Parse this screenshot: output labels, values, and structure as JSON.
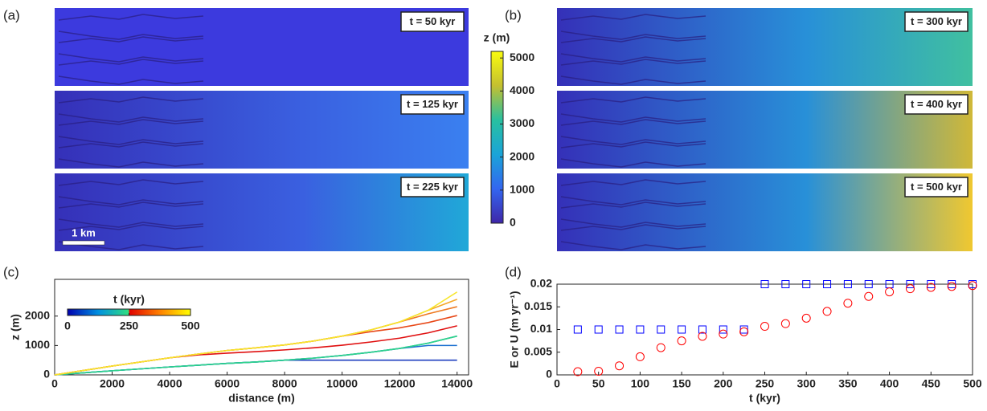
{
  "panel_labels": [
    "(a)",
    "(b)",
    "(c)",
    "(d)"
  ],
  "maps": {
    "a": {
      "panels": [
        {
          "label": "t = 50 kyr"
        },
        {
          "label": "t = 125 kyr"
        },
        {
          "label": "t = 225 kyr"
        }
      ],
      "scale_bar": "1 km"
    },
    "b": {
      "panels": [
        {
          "label": "t = 300 kyr"
        },
        {
          "label": "t = 400 kyr"
        },
        {
          "label": "t = 500 kyr"
        }
      ]
    },
    "colorbar": {
      "label": "z (m)",
      "lim": [
        0,
        5200
      ],
      "ticks": [
        0,
        1000,
        2000,
        3000,
        4000,
        5000
      ]
    }
  },
  "chart_data": [
    {
      "type": "line",
      "xlabel": "distance (m)",
      "ylabel": "z (m)",
      "x": [
        0,
        1000,
        2000,
        3000,
        4000,
        5000,
        6000,
        7000,
        8000,
        9000,
        10000,
        11000,
        12000,
        13000,
        14000
      ],
      "xlim": [
        0,
        14400
      ],
      "ylim": [
        0,
        3250
      ],
      "xticks": [
        0,
        2000,
        4000,
        6000,
        8000,
        10000,
        12000,
        14000
      ],
      "yticks": [
        0,
        1000,
        2000
      ],
      "colorbar": {
        "label": "t (kyr)",
        "lim": [
          0,
          500
        ],
        "ticks": [
          0,
          250,
          500
        ]
      },
      "series": [
        {
          "color": "#1f3fbf",
          "values": [
            0,
            70,
            140,
            205,
            270,
            330,
            390,
            440,
            500,
            500,
            500,
            500,
            500,
            500,
            500
          ]
        },
        {
          "color": "#1a6fd0",
          "values": [
            0,
            70,
            140,
            205,
            270,
            330,
            390,
            440,
            500,
            570,
            660,
            770,
            900,
            1000,
            1000
          ]
        },
        {
          "color": "#18a0c0",
          "values": [
            0,
            70,
            140,
            205,
            270,
            330,
            390,
            440,
            500,
            570,
            660,
            770,
            900,
            1080,
            1320
          ]
        },
        {
          "color": "#2fd38a",
          "values": [
            0,
            70,
            140,
            205,
            270,
            330,
            390,
            440,
            500,
            570,
            660,
            770,
            900,
            1080,
            1320
          ]
        },
        {
          "color": "#e01010",
          "values": [
            0,
            150,
            300,
            440,
            580,
            680,
            740,
            790,
            850,
            920,
            1010,
            1120,
            1250,
            1430,
            1670
          ]
        },
        {
          "color": "#e84a1a",
          "values": [
            0,
            150,
            300,
            440,
            580,
            710,
            830,
            920,
            1020,
            1150,
            1320,
            1470,
            1600,
            1780,
            2020
          ]
        },
        {
          "color": "#ee7a22",
          "values": [
            0,
            150,
            300,
            440,
            580,
            710,
            830,
            920,
            1020,
            1150,
            1320,
            1530,
            1800,
            2080,
            2320
          ]
        },
        {
          "color": "#f4a828",
          "values": [
            0,
            150,
            300,
            440,
            580,
            710,
            830,
            920,
            1020,
            1150,
            1320,
            1530,
            1800,
            2200,
            2570
          ]
        },
        {
          "color": "#f7e62c",
          "values": [
            0,
            150,
            300,
            440,
            580,
            710,
            830,
            920,
            1020,
            1150,
            1320,
            1530,
            1800,
            2200,
            2820
          ]
        }
      ]
    },
    {
      "type": "scatter",
      "xlabel": "t (kyr)",
      "ylabel": "E or U (m yr⁻¹)",
      "x": [
        25,
        50,
        75,
        100,
        125,
        150,
        175,
        200,
        225,
        250,
        275,
        300,
        325,
        350,
        375,
        400,
        425,
        450,
        475,
        500
      ],
      "xlim": [
        0,
        500
      ],
      "ylim": [
        0,
        0.02
      ],
      "xticks": [
        0,
        50,
        100,
        150,
        200,
        250,
        300,
        350,
        400,
        450,
        500
      ],
      "yticks": [
        0,
        0.005,
        0.01,
        0.015,
        0.02
      ],
      "series": [
        {
          "color": "#0000ff",
          "marker": "square",
          "values": [
            0.01,
            0.01,
            0.01,
            0.01,
            0.01,
            0.01,
            0.01,
            0.01,
            0.01,
            0.02,
            0.02,
            0.02,
            0.02,
            0.02,
            0.02,
            0.02,
            0.02,
            0.02,
            0.02,
            0.02
          ]
        },
        {
          "color": "#ff0000",
          "marker": "circle",
          "values": [
            0.0007,
            0.0008,
            0.002,
            0.004,
            0.006,
            0.0075,
            0.0085,
            0.009,
            0.0095,
            0.0107,
            0.0113,
            0.0125,
            0.014,
            0.0158,
            0.0173,
            0.0183,
            0.019,
            0.0193,
            0.0195,
            0.0197
          ]
        }
      ]
    }
  ]
}
